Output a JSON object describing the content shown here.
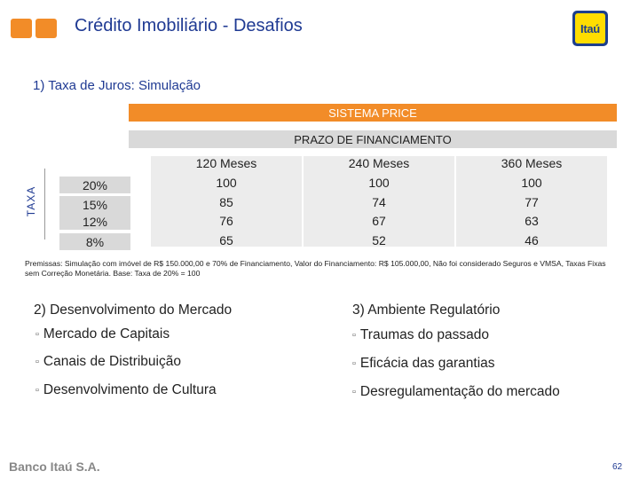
{
  "header": {
    "title": "Crédito Imobiliário - Desafios",
    "brand_logo_text": "Itaú",
    "accent_color": "#f28c28",
    "brand_blue": "#1d3f8c"
  },
  "section1": {
    "number": "1)",
    "title": "Taxa de Juros: Simulação"
  },
  "table": {
    "system_label": "SISTEMA PRICE",
    "term_label": "PRAZO DE FINANCIAMENTO",
    "axis_label": "TAXA",
    "columns": [
      "120 Meses",
      "240 Meses",
      "360 Meses"
    ],
    "rates": [
      "20%",
      "15%",
      "12%",
      "8%"
    ],
    "rows": [
      [
        "100",
        "100",
        "100"
      ],
      [
        "85",
        "74",
        "77"
      ],
      [
        "76",
        "67",
        "63"
      ],
      [
        "65",
        "52",
        "46"
      ]
    ]
  },
  "premissas": "Premissas: Simulação com imóvel de R$ 150.000,00 e 70% de Financiamento, Valor do Financiamento: R$ 105.000,00, Não foi considerado Seguros e VMSA, Taxas Fixas sem Correção Monetária. Base: Taxa de 20% = 100",
  "section2": {
    "number": "2)",
    "title": "Desenvolvimento do Mercado",
    "items": [
      "Mercado de Capitais",
      "Canais de Distribuição",
      "Desenvolvimento de Cultura"
    ]
  },
  "section3": {
    "number": "3)",
    "title": "Ambiente Regulatório",
    "items": [
      "Traumas do passado",
      "Eficácia das garantias",
      "Desregulamentação do mercado"
    ]
  },
  "footer": {
    "brand": "Banco Itaú S.A.",
    "page": "62"
  }
}
